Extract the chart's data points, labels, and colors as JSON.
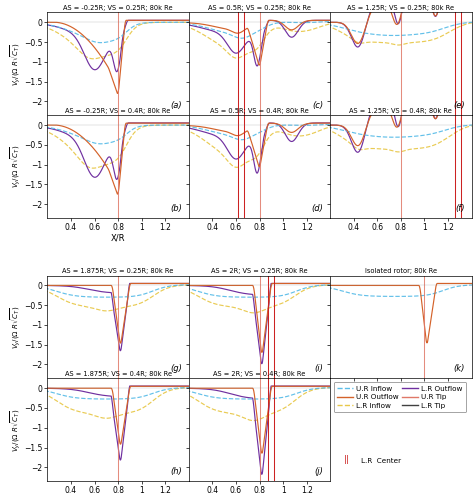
{
  "subplot_titles": [
    "AS = -0.25R; VS = 0.25R; 80k Re",
    "AS = -0.25R; VS = 0.4R; 80k Re",
    "AS = 0.5R; VS = 0.25R; 80k Re",
    "AS = 0.5R; VS = 0.4R; 80k Re",
    "AS = 1.25R; VS = 0.25R; 80k Re",
    "AS = 1.25R; VS = 0.4R; 80k Re",
    "AS = 1.875R; VS = 0.25R; 80k Re",
    "AS = 1.875R; VS = 0.4R; 80k Re",
    "AS = 2R; VS = 0.25R; 80k Re",
    "AS = 2R; VS = 0.4R; 80k Re",
    "Isolated rotor; 80k Re"
  ],
  "subplot_labels": [
    "(a)",
    "(b)",
    "(c)",
    "(d)",
    "(e)",
    "(f)",
    "(g)",
    "(h)",
    "(i)",
    "(j)",
    "(k)"
  ],
  "ylabel": "V_y/(Ω R√ C_T)",
  "xlabel": "X/R",
  "colors": {
    "UR_inflow": "#5bbde8",
    "UR_outflow": "#d4622a",
    "LR_inflow": "#e8c84a",
    "LR_outflow": "#7030a0",
    "UR_tip": "#e07868",
    "LR_tip": "#404040",
    "LR_center": "#cc2222"
  },
  "figsize": [
    4.74,
    4.96
  ],
  "dpi": 100
}
